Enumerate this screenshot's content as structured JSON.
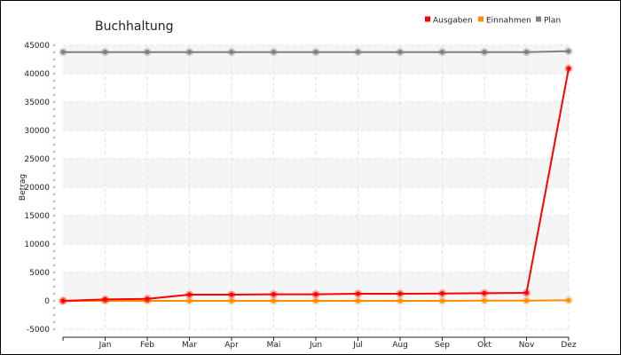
{
  "chart_data": {
    "type": "line",
    "title": "Buchhaltung",
    "xlabel": "",
    "ylabel": "Betrag",
    "categories": [
      "",
      "Jan",
      "Feb",
      "Mar",
      "Apr",
      "Mai",
      "Jun",
      "Jul",
      "Aug",
      "Sep",
      "Okt",
      "Nov",
      "Dez"
    ],
    "ylim": [
      -5000,
      45000
    ],
    "yticks": [
      -5000,
      0,
      5000,
      10000,
      15000,
      20000,
      25000,
      30000,
      35000,
      40000,
      45000
    ],
    "grid": true,
    "legend_position": "top-right",
    "series": [
      {
        "name": "Ausgaben",
        "color": "#ff0000",
        "values": [
          0,
          250,
          350,
          1100,
          1100,
          1150,
          1150,
          1250,
          1250,
          1300,
          1350,
          1400,
          40900
        ]
      },
      {
        "name": "Einnahmen",
        "color": "#ff8c00",
        "values": [
          0,
          0,
          0,
          0,
          0,
          0,
          0,
          0,
          0,
          0,
          50,
          50,
          100
        ]
      },
      {
        "name": "Plan",
        "color": "#808080",
        "values": [
          43800,
          43800,
          43800,
          43800,
          43800,
          43800,
          43800,
          43800,
          43800,
          43800,
          43800,
          43800,
          43950
        ]
      }
    ]
  }
}
